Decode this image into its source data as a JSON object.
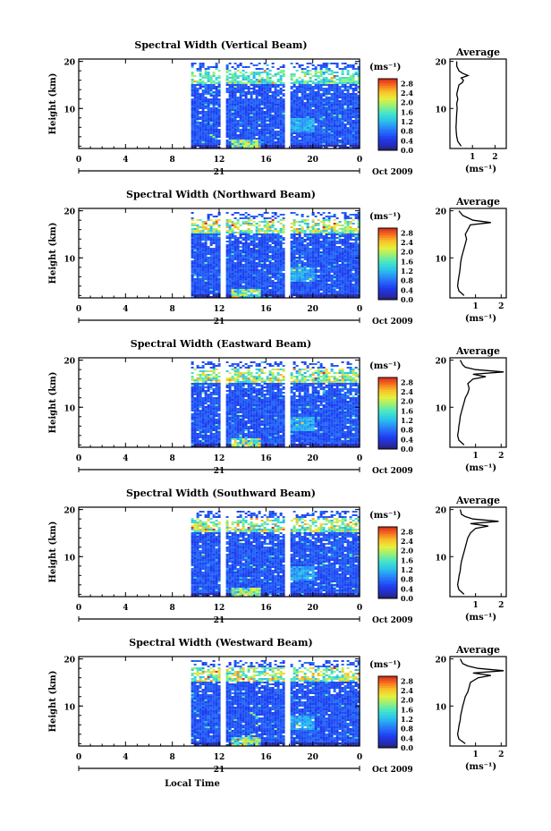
{
  "chart_data": [
    {
      "type": "heatmap",
      "title": "Spectral Width (Vertical Beam)",
      "ylabel": "Height (km)",
      "xlabel": "",
      "x_ticks": [
        "0",
        "4",
        "8",
        "12",
        "16",
        "20",
        "0"
      ],
      "y_ticks": [
        "20",
        "10"
      ],
      "date_marker": "21",
      "date_label": "Oct 2009",
      "xlim": [
        0,
        24
      ],
      "ylim": [
        1.5,
        20.5
      ],
      "data_start_hour": 9.6,
      "gaps_hours": [
        12.3,
        17.8
      ],
      "colorbar_unit": "(ms⁻¹)",
      "colorbar_ticks": [
        "2.8",
        "2.4",
        "2.0",
        "1.6",
        "1.2",
        "0.8",
        "0.4",
        "0.0"
      ],
      "colorbar_range": [
        0,
        3.0
      ],
      "average": {
        "title": "Average",
        "xlabel": "(ms⁻¹)",
        "x_ticks": [
          "1",
          "2"
        ],
        "y_ticks": [
          "20",
          "10"
        ],
        "xlim": [
          0,
          2.5
        ],
        "ylim": [
          1.5,
          20.5
        ],
        "height_km": [
          2,
          3,
          4,
          5,
          6,
          7,
          8,
          9,
          10,
          11,
          12,
          13,
          14,
          15,
          15.5,
          16,
          16.5,
          17,
          17.5,
          18,
          19,
          20
        ],
        "width_ms": [
          0.5,
          0.35,
          0.3,
          0.28,
          0.27,
          0.28,
          0.29,
          0.3,
          0.32,
          0.3,
          0.35,
          0.3,
          0.35,
          0.4,
          0.55,
          0.6,
          0.5,
          0.8,
          0.55,
          0.4,
          0.3,
          0.3
        ]
      }
    },
    {
      "type": "heatmap",
      "title": "Spectral Width (Northward Beam)",
      "ylabel": "Height (km)",
      "xlabel": "",
      "x_ticks": [
        "0",
        "4",
        "8",
        "12",
        "16",
        "20",
        "0"
      ],
      "y_ticks": [
        "20",
        "10"
      ],
      "date_marker": "21",
      "date_label": "Oct 2009",
      "xlim": [
        0,
        24
      ],
      "ylim": [
        1.5,
        20.5
      ],
      "data_start_hour": 9.6,
      "gaps_hours": [
        12.3,
        17.8
      ],
      "colorbar_unit": "(ms⁻¹)",
      "colorbar_ticks": [
        "2.8",
        "2.4",
        "2.0",
        "1.6",
        "1.2",
        "0.8",
        "0.4",
        "0.0"
      ],
      "colorbar_range": [
        0,
        3.0
      ],
      "average": {
        "title": "Average",
        "xlabel": "(ms⁻¹)",
        "x_ticks": [
          "1",
          "2"
        ],
        "y_ticks": [
          "20",
          "10"
        ],
        "xlim": [
          0,
          2.2
        ],
        "ylim": [
          1.5,
          20.5
        ],
        "height_km": [
          2,
          3,
          4,
          5,
          6,
          7,
          8,
          9,
          10,
          11,
          12,
          13,
          14,
          15,
          16,
          17,
          17.5,
          18,
          18.5,
          19,
          20
        ],
        "width_ms": [
          0.55,
          0.35,
          0.3,
          0.32,
          0.35,
          0.38,
          0.4,
          0.42,
          0.45,
          0.5,
          0.55,
          0.6,
          0.65,
          0.6,
          0.7,
          0.8,
          1.6,
          0.9,
          0.7,
          0.5,
          0.35
        ]
      }
    },
    {
      "type": "heatmap",
      "title": "Spectral Width (Eastward Beam)",
      "ylabel": "Height (km)",
      "xlabel": "",
      "x_ticks": [
        "0",
        "4",
        "8",
        "12",
        "16",
        "20",
        "0"
      ],
      "y_ticks": [
        "20",
        "10"
      ],
      "date_marker": "21",
      "date_label": "Oct 2009",
      "xlim": [
        0,
        24
      ],
      "ylim": [
        1.5,
        20.5
      ],
      "data_start_hour": 9.6,
      "gaps_hours": [
        12.3,
        17.8
      ],
      "colorbar_unit": "(ms⁻¹)",
      "colorbar_ticks": [
        "2.8",
        "2.4",
        "2.0",
        "1.6",
        "1.2",
        "0.8",
        "0.4",
        "0.0"
      ],
      "colorbar_range": [
        0,
        3.0
      ],
      "average": {
        "title": "Average",
        "xlabel": "(ms⁻¹)",
        "x_ticks": [
          "1",
          "2"
        ],
        "y_ticks": [
          "20",
          "10"
        ],
        "xlim": [
          0,
          2.2
        ],
        "ylim": [
          1.5,
          20.5
        ],
        "height_km": [
          2,
          3,
          4,
          5,
          6,
          7,
          8,
          9,
          10,
          11,
          12,
          13,
          14,
          15,
          16,
          16.5,
          17,
          17.5,
          18,
          18.5,
          19,
          20
        ],
        "width_ms": [
          0.55,
          0.35,
          0.3,
          0.33,
          0.35,
          0.38,
          0.4,
          0.45,
          0.5,
          0.55,
          0.6,
          0.7,
          0.75,
          0.7,
          0.9,
          1.4,
          0.9,
          2.1,
          1.0,
          0.6,
          0.5,
          0.4
        ]
      }
    },
    {
      "type": "heatmap",
      "title": "Spectral Width (Southward Beam)",
      "ylabel": "Height (km)",
      "xlabel": "",
      "x_ticks": [
        "0",
        "4",
        "8",
        "12",
        "16",
        "20",
        "0"
      ],
      "y_ticks": [
        "20",
        "10"
      ],
      "date_marker": "21",
      "date_label": "Oct 2009",
      "xlim": [
        0,
        24
      ],
      "ylim": [
        1.5,
        20.5
      ],
      "data_start_hour": 9.6,
      "gaps_hours": [
        12.3,
        17.8
      ],
      "colorbar_unit": "(ms⁻¹)",
      "colorbar_ticks": [
        "2.8",
        "2.4",
        "2.0",
        "1.6",
        "1.2",
        "0.8",
        "0.4",
        "0.0"
      ],
      "colorbar_range": [
        0,
        3.0
      ],
      "average": {
        "title": "Average",
        "xlabel": "(ms⁻¹)",
        "x_ticks": [
          "1",
          "2"
        ],
        "y_ticks": [
          "20",
          "10"
        ],
        "xlim": [
          0,
          2.2
        ],
        "ylim": [
          1.5,
          20.5
        ],
        "height_km": [
          2,
          3,
          4,
          5,
          6,
          7,
          8,
          9,
          10,
          11,
          12,
          13,
          14,
          15,
          16,
          16.5,
          17,
          17.5,
          18,
          18.5,
          19,
          20
        ],
        "width_ms": [
          0.55,
          0.35,
          0.3,
          0.33,
          0.36,
          0.4,
          0.42,
          0.45,
          0.5,
          0.55,
          0.6,
          0.65,
          0.7,
          0.8,
          1.0,
          1.5,
          0.8,
          1.9,
          0.9,
          0.6,
          0.45,
          0.4
        ]
      }
    },
    {
      "type": "heatmap",
      "title": "Spectral Width (Westward Beam)",
      "ylabel": "Height (km)",
      "xlabel": "Local Time",
      "x_ticks": [
        "0",
        "4",
        "8",
        "12",
        "16",
        "20",
        "0"
      ],
      "y_ticks": [
        "20",
        "10"
      ],
      "date_marker": "21",
      "date_label": "Oct 2009",
      "xlim": [
        0,
        24
      ],
      "ylim": [
        1.5,
        20.5
      ],
      "data_start_hour": 9.6,
      "gaps_hours": [
        12.3,
        17.8
      ],
      "colorbar_unit": "(ms⁻¹)",
      "colorbar_ticks": [
        "2.8",
        "2.4",
        "2.0",
        "1.6",
        "1.2",
        "0.8",
        "0.4",
        "0.0"
      ],
      "colorbar_range": [
        0,
        3.0
      ],
      "average": {
        "title": "Average",
        "xlabel": "(ms⁻¹)",
        "x_ticks": [
          "1",
          "2"
        ],
        "y_ticks": [
          "20",
          "10"
        ],
        "xlim": [
          0,
          2.2
        ],
        "ylim": [
          1.5,
          20.5
        ],
        "height_km": [
          2,
          3,
          4,
          5,
          6,
          7,
          8,
          9,
          10,
          11,
          12,
          13,
          14,
          15,
          16,
          16.5,
          17,
          17.5,
          18,
          18.5,
          19,
          20
        ],
        "width_ms": [
          0.6,
          0.35,
          0.3,
          0.33,
          0.36,
          0.4,
          0.42,
          0.46,
          0.5,
          0.55,
          0.6,
          0.7,
          0.75,
          0.8,
          1.1,
          1.6,
          0.9,
          2.1,
          1.1,
          0.7,
          0.5,
          0.4
        ]
      }
    }
  ]
}
